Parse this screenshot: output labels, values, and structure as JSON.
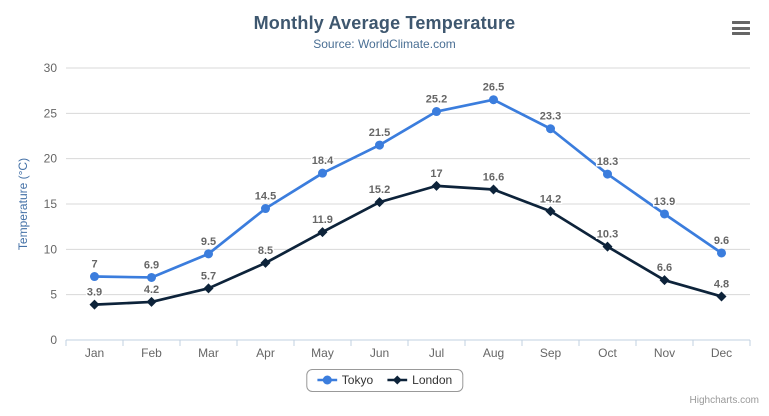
{
  "chart_data": {
    "type": "line",
    "title": "Monthly Average Temperature",
    "subtitle": "Source: WorldClimate.com",
    "categories": [
      "Jan",
      "Feb",
      "Mar",
      "Apr",
      "May",
      "Jun",
      "Jul",
      "Aug",
      "Sep",
      "Oct",
      "Nov",
      "Dec"
    ],
    "xlabel": "",
    "ylabel": "Temperature (°C)",
    "ylim": [
      0,
      30
    ],
    "ytick_step": 5,
    "grid": true,
    "legend_position": "bottom",
    "series": [
      {
        "name": "Tokyo",
        "color": "#3b7ddd",
        "marker": "circle",
        "values": [
          7,
          6.9,
          9.5,
          14.5,
          18.4,
          21.5,
          25.2,
          26.5,
          23.3,
          18.3,
          13.9,
          9.6
        ]
      },
      {
        "name": "London",
        "color": "#0d233a",
        "marker": "diamond",
        "values": [
          3.9,
          4.2,
          5.7,
          8.5,
          11.9,
          15.2,
          17,
          16.6,
          14.2,
          10.3,
          6.6,
          4.8
        ]
      }
    ]
  },
  "credits": "Highcharts.com",
  "icons": {
    "context_menu": "hamburger-icon"
  },
  "colors": {
    "title": "#3e576f",
    "subtitle": "#4a6f94",
    "axis_title": "#4572a7",
    "axis_labels": "#666666",
    "data_label": "#666666",
    "grid": "#d8d8d8",
    "axis_line": "#c0d0e0",
    "legend_border": "#999999",
    "legend_text": "#333333",
    "credits": "#999999",
    "menu_icon": "#666666",
    "background": "#ffffff"
  }
}
